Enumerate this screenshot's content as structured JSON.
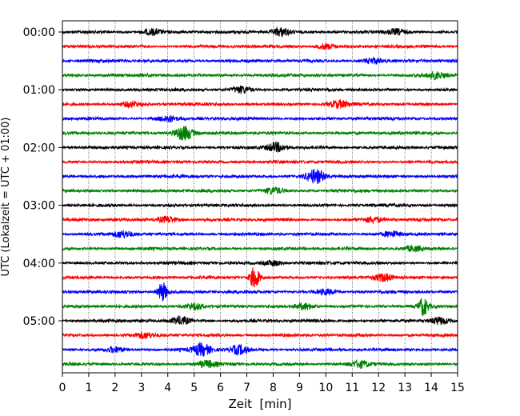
{
  "chart_data": {
    "type": "line",
    "title": "",
    "xlabel": "Zeit  [min]",
    "ylabel": "UTC (Lokalzeit = UTC + 01:00)",
    "xlim": [
      0,
      15
    ],
    "x_ticks": [
      "0",
      "1",
      "2",
      "3",
      "4",
      "5",
      "6",
      "7",
      "8",
      "9",
      "10",
      "11",
      "12",
      "13",
      "14",
      "15"
    ],
    "y_ticks": [
      "00:00",
      "01:00",
      "02:00",
      "03:00",
      "04:00",
      "05:00"
    ],
    "grid": "vertical dotted lines at each minute",
    "trace_interval_minutes": 15,
    "trace_colors": [
      "#000000",
      "#ff0000",
      "#0000ff",
      "#008000"
    ],
    "traces": [
      {
        "start": "00:00",
        "color": "#000000"
      },
      {
        "start": "00:15",
        "color": "#ff0000"
      },
      {
        "start": "00:30",
        "color": "#0000ff"
      },
      {
        "start": "00:45",
        "color": "#008000"
      },
      {
        "start": "01:00",
        "color": "#000000"
      },
      {
        "start": "01:15",
        "color": "#ff0000"
      },
      {
        "start": "01:30",
        "color": "#0000ff"
      },
      {
        "start": "01:45",
        "color": "#008000"
      },
      {
        "start": "02:00",
        "color": "#000000"
      },
      {
        "start": "02:15",
        "color": "#ff0000"
      },
      {
        "start": "02:30",
        "color": "#0000ff"
      },
      {
        "start": "02:45",
        "color": "#008000"
      },
      {
        "start": "03:00",
        "color": "#000000"
      },
      {
        "start": "03:15",
        "color": "#ff0000"
      },
      {
        "start": "03:30",
        "color": "#0000ff"
      },
      {
        "start": "03:45",
        "color": "#008000"
      },
      {
        "start": "04:00",
        "color": "#000000"
      },
      {
        "start": "04:15",
        "color": "#ff0000"
      },
      {
        "start": "04:30",
        "color": "#0000ff"
      },
      {
        "start": "04:45",
        "color": "#008000"
      },
      {
        "start": "05:00",
        "color": "#000000"
      },
      {
        "start": "05:15",
        "color": "#ff0000"
      },
      {
        "start": "05:30",
        "color": "#0000ff"
      },
      {
        "start": "05:45",
        "color": "#008000"
      }
    ],
    "events": [
      {
        "trace": 0,
        "minute": 8.3,
        "amplitude": 0.6
      },
      {
        "trace": 0,
        "minute": 3.4,
        "amplitude": 0.4
      },
      {
        "trace": 0,
        "minute": 12.7,
        "amplitude": 0.35
      },
      {
        "trace": 1,
        "minute": 10.0,
        "amplitude": 0.35
      },
      {
        "trace": 2,
        "minute": 11.8,
        "amplitude": 0.35
      },
      {
        "trace": 3,
        "minute": 14.2,
        "amplitude": 0.45
      },
      {
        "trace": 4,
        "minute": 6.8,
        "amplitude": 0.45
      },
      {
        "trace": 5,
        "minute": 10.5,
        "amplitude": 0.45
      },
      {
        "trace": 5,
        "minute": 2.6,
        "amplitude": 0.35
      },
      {
        "trace": 6,
        "minute": 4.0,
        "amplitude": 0.4
      },
      {
        "trace": 7,
        "minute": 4.6,
        "amplitude": 1.0
      },
      {
        "trace": 8,
        "minute": 8.1,
        "amplitude": 0.6
      },
      {
        "trace": 10,
        "minute": 9.6,
        "amplitude": 0.9
      },
      {
        "trace": 11,
        "minute": 8.0,
        "amplitude": 0.45
      },
      {
        "trace": 13,
        "minute": 4.0,
        "amplitude": 0.45
      },
      {
        "trace": 13,
        "minute": 11.8,
        "amplitude": 0.4
      },
      {
        "trace": 14,
        "minute": 2.3,
        "amplitude": 0.45
      },
      {
        "trace": 14,
        "minute": 12.5,
        "amplitude": 0.35
      },
      {
        "trace": 15,
        "minute": 13.3,
        "amplitude": 0.35
      },
      {
        "trace": 16,
        "minute": 8.0,
        "amplitude": 0.35
      },
      {
        "trace": 17,
        "minute": 7.3,
        "amplitude": 1.5
      },
      {
        "trace": 17,
        "minute": 12.2,
        "amplitude": 0.5
      },
      {
        "trace": 18,
        "minute": 3.8,
        "amplitude": 1.3
      },
      {
        "trace": 18,
        "minute": 10.0,
        "amplitude": 0.35
      },
      {
        "trace": 19,
        "minute": 13.7,
        "amplitude": 1.2
      },
      {
        "trace": 19,
        "minute": 5.0,
        "amplitude": 0.45
      },
      {
        "trace": 19,
        "minute": 9.2,
        "amplitude": 0.4
      },
      {
        "trace": 20,
        "minute": 4.5,
        "amplitude": 0.5
      },
      {
        "trace": 20,
        "minute": 14.3,
        "amplitude": 0.45
      },
      {
        "trace": 21,
        "minute": 3.1,
        "amplitude": 0.35
      },
      {
        "trace": 22,
        "minute": 5.3,
        "amplitude": 0.8
      },
      {
        "trace": 22,
        "minute": 6.7,
        "amplitude": 0.6
      },
      {
        "trace": 22,
        "minute": 2.0,
        "amplitude": 0.35
      },
      {
        "trace": 23,
        "minute": 5.5,
        "amplitude": 0.4
      },
      {
        "trace": 23,
        "minute": 11.3,
        "amplitude": 0.4
      }
    ]
  }
}
